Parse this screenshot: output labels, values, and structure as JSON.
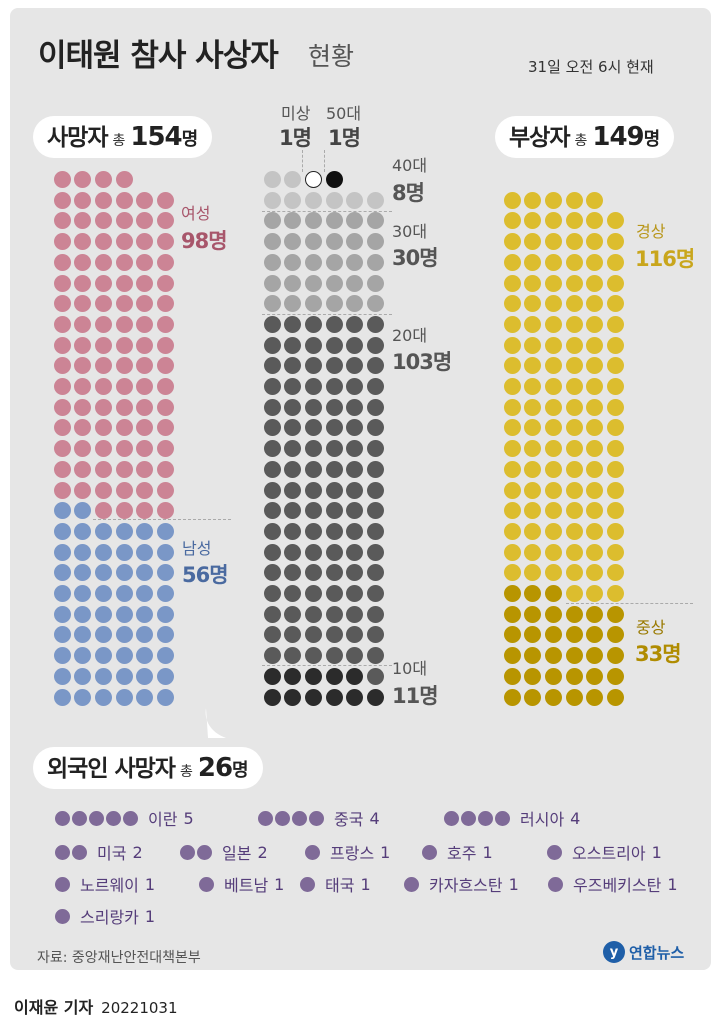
{
  "title": "이태원 참사 사상자",
  "title_suffix": "현황",
  "as_of": "31일 오전 6시 현재",
  "deaths": {
    "label": "사망자",
    "total_word": "총",
    "total": "154",
    "unit": "명"
  },
  "injured": {
    "label": "부상자",
    "total_word": "총",
    "total": "149",
    "unit": "명"
  },
  "foreign": {
    "label": "외국인 사망자",
    "total_word": "총",
    "total": "26",
    "unit": "명"
  },
  "groups": {
    "female": {
      "label": "여성",
      "value": "98명",
      "color": "#cc8495"
    },
    "male": {
      "label": "남성",
      "value": "56명",
      "color": "#7a97c7"
    },
    "unknown": {
      "label": "미상",
      "value": "1명"
    },
    "age50": {
      "label": "50대",
      "value": "1명"
    },
    "age40": {
      "label": "40대",
      "value": "8명",
      "color": "#c4c4c4"
    },
    "age30": {
      "label": "30대",
      "value": "30명",
      "color": "#a5a5a5"
    },
    "age20": {
      "label": "20대",
      "value": "103명",
      "color": "#5a5a5a"
    },
    "age10": {
      "label": "10대",
      "value": "11명",
      "color": "#2b2b2b"
    },
    "minor": {
      "label": "경상",
      "value": "116명",
      "color": "#dcbd2e"
    },
    "serious": {
      "label": "중상",
      "value": "33명",
      "color": "#b89500"
    }
  },
  "chart_data": {
    "type": "pictogram",
    "series": [
      {
        "name": "사망자",
        "categories": [
          "여성",
          "남성"
        ],
        "values": [
          98,
          56
        ]
      },
      {
        "name": "사망자",
        "categories": [
          "미상",
          "50대",
          "40대",
          "30대",
          "20대",
          "10대"
        ],
        "values": [
          1,
          1,
          8,
          30,
          103,
          11
        ]
      },
      {
        "name": "부상자",
        "categories": [
          "경상",
          "중상"
        ],
        "values": [
          116,
          33
        ]
      },
      {
        "name": "외국인 사망자",
        "categories": [
          "이란",
          "중국",
          "러시아",
          "미국",
          "일본",
          "프랑스",
          "호주",
          "오스트리아",
          "노르웨이",
          "베트남",
          "태국",
          "카자흐스탄",
          "우즈베키스탄",
          "스리랑카"
        ],
        "values": [
          5,
          4,
          4,
          2,
          2,
          1,
          1,
          1,
          1,
          1,
          1,
          1,
          1,
          1
        ]
      }
    ]
  },
  "countries": [
    {
      "name": "이란",
      "count": "5",
      "n": 5
    },
    {
      "name": "중국",
      "count": "4",
      "n": 4
    },
    {
      "name": "러시아",
      "count": "4",
      "n": 4
    },
    {
      "name": "미국",
      "count": "2",
      "n": 2
    },
    {
      "name": "일본",
      "count": "2",
      "n": 2
    },
    {
      "name": "프랑스",
      "count": "1",
      "n": 1
    },
    {
      "name": "호주",
      "count": "1",
      "n": 1
    },
    {
      "name": "오스트리아",
      "count": "1",
      "n": 1
    },
    {
      "name": "노르웨이",
      "count": "1",
      "n": 1
    },
    {
      "name": "베트남",
      "count": "1",
      "n": 1
    },
    {
      "name": "태국",
      "count": "1",
      "n": 1
    },
    {
      "name": "카자흐스탄",
      "count": "1",
      "n": 1
    },
    {
      "name": "우즈베키스탄",
      "count": "1",
      "n": 1
    },
    {
      "name": "스리랑카",
      "count": "1",
      "n": 1
    }
  ],
  "source": "자료: 중앙재난안전대책본부",
  "logo": {
    "mark": "y",
    "text": "연합뉴스"
  },
  "byline": {
    "author": "이재윤 기자",
    "date": "20221031"
  },
  "colors": {
    "legend_text": "#553d7a",
    "legend_dot": "#7f6a98",
    "panel": "#e6e6e6"
  }
}
